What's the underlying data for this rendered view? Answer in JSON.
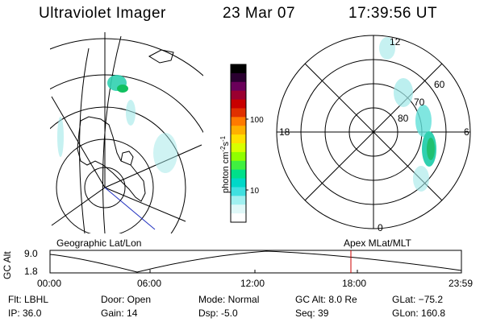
{
  "header": {
    "instrument": "Ultraviolet Imager",
    "date": "23 Mar 07",
    "time": "17:39:56 UT"
  },
  "colorbar": {
    "unit_label": "photon cm",
    "unit_exp1": "-2",
    "unit_mid": "s",
    "unit_exp2": "-1",
    "ticks": [
      "100",
      "10"
    ],
    "colors": [
      "#000000",
      "#2a0030",
      "#6a005a",
      "#9a0030",
      "#c80000",
      "#e03000",
      "#ff7a00",
      "#ffb000",
      "#ffe000",
      "#d8ff00",
      "#90ff00",
      "#40f040",
      "#00e08a",
      "#00d8c8",
      "#40e0e0",
      "#a0f0f0",
      "#e0f8f8",
      "#ffffff"
    ]
  },
  "geo_panel": {
    "label": "Geographic Lat/Lon",
    "aurora_color": "#40e0d0"
  },
  "polar_panel": {
    "label": "Apex MLat/MLT",
    "mlt_labels": {
      "top": "12",
      "left": "18",
      "right": "6",
      "bottom": "0"
    },
    "lat_labels": [
      "60",
      "70",
      "80"
    ]
  },
  "altitude_plot": {
    "ylabel": "GC Alt",
    "yticks": [
      "9.0",
      "1.8"
    ],
    "xticks": [
      "00:00",
      "06:00",
      "12:00",
      "18:00",
      "23:59"
    ],
    "marker_time": "17:40",
    "marker_color": "#cc0000"
  },
  "info": {
    "filter": "Flt: LBHL",
    "ip": "IP: 36.0",
    "door": "Door: Open",
    "gain": "Gain: 14",
    "mode": "Mode: Normal",
    "dsp": "Dsp:   -5.0",
    "gc_alt": "GC Alt: 8.0 Re",
    "seq": "Seq: 39",
    "glat": "GLat: −75.2",
    "glon": "GLon: 160.8"
  }
}
